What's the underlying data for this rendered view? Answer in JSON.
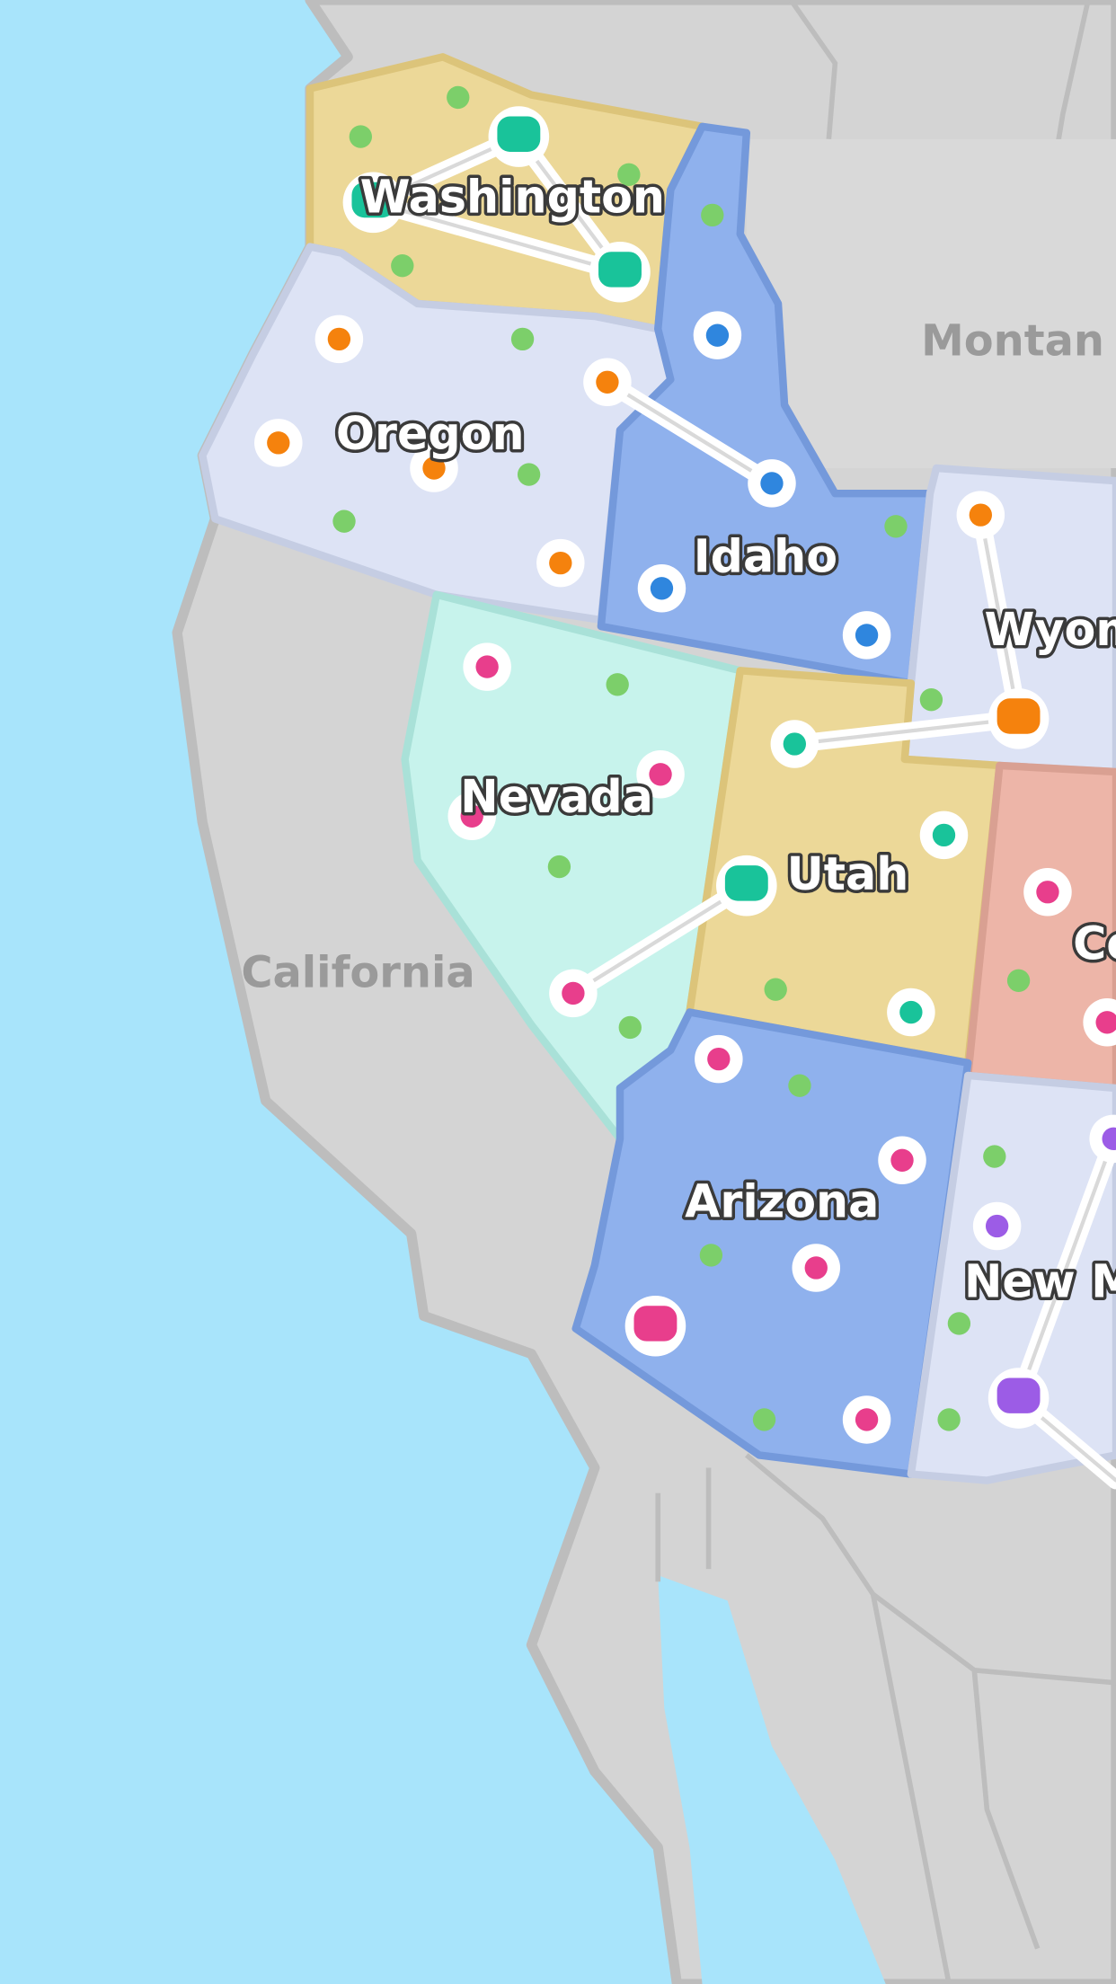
{
  "map": {
    "labels": [
      "Washington",
      "Oregon",
      "Idaho",
      "Montan",
      "Wyom",
      "Nevada",
      "Utah",
      "Co",
      "California",
      "Arizona",
      "New M"
    ]
  }
}
